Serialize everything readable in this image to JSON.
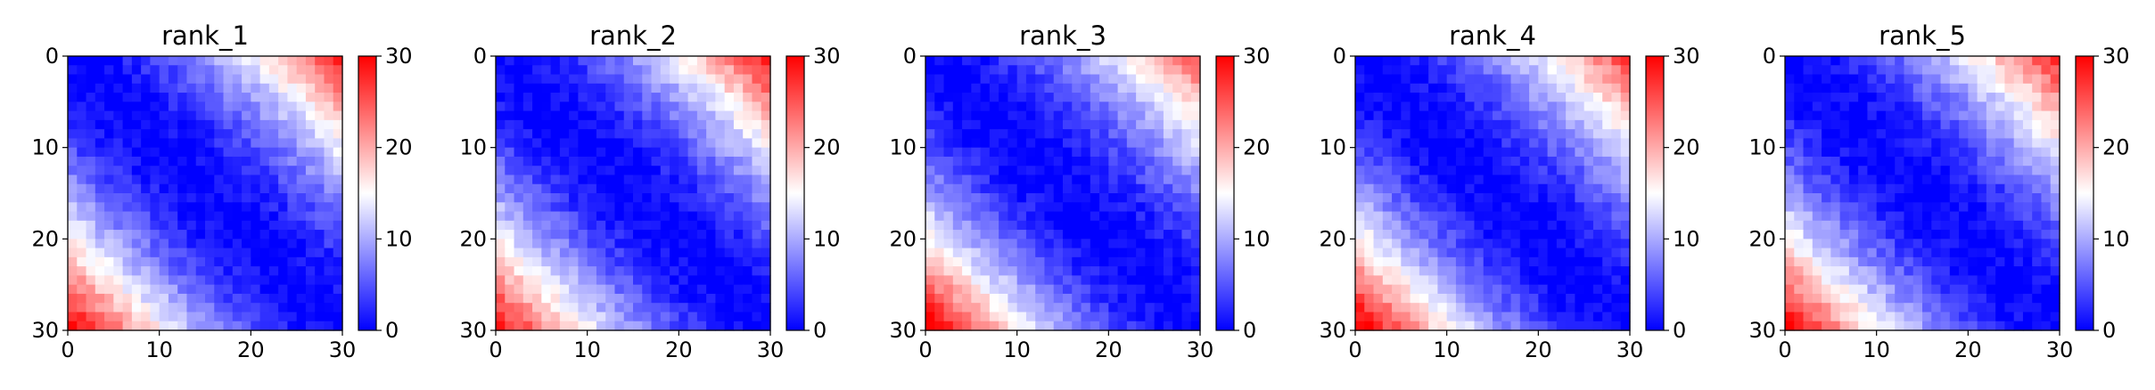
{
  "chart_data": [
    {
      "type": "heatmap",
      "title": "rank_1",
      "grid_size": 30,
      "x_ticks": [
        "0",
        "10",
        "20",
        "30"
      ],
      "y_ticks": [
        "0",
        "10",
        "20",
        "30"
      ],
      "colorbar": {
        "colormap": "bwr",
        "range": [
          0,
          30
        ],
        "ticks": [
          "0",
          "10",
          "20",
          "30"
        ]
      },
      "diagonal_value": 0,
      "top_right_value": 27,
      "bottom_left_value": 30
    },
    {
      "type": "heatmap",
      "title": "rank_2",
      "grid_size": 30,
      "x_ticks": [
        "0",
        "10",
        "20",
        "30"
      ],
      "y_ticks": [
        "0",
        "10",
        "20",
        "30"
      ],
      "colorbar": {
        "colormap": "bwr",
        "range": [
          0,
          30
        ],
        "ticks": [
          "0",
          "10",
          "20",
          "30"
        ]
      },
      "diagonal_value": 0,
      "top_right_value": 28,
      "bottom_left_value": 29
    },
    {
      "type": "heatmap",
      "title": "rank_3",
      "grid_size": 30,
      "x_ticks": [
        "0",
        "10",
        "20",
        "30"
      ],
      "y_ticks": [
        "0",
        "10",
        "20",
        "30"
      ],
      "colorbar": {
        "colormap": "bwr",
        "range": [
          0,
          30
        ],
        "ticks": [
          "0",
          "10",
          "20",
          "30"
        ]
      },
      "diagonal_value": 0,
      "top_right_value": 24,
      "bottom_left_value": 31
    },
    {
      "type": "heatmap",
      "title": "rank_4",
      "grid_size": 30,
      "x_ticks": [
        "0",
        "10",
        "20",
        "30"
      ],
      "y_ticks": [
        "0",
        "10",
        "20",
        "30"
      ],
      "colorbar": {
        "colormap": "bwr",
        "range": [
          0,
          30
        ],
        "ticks": [
          "0",
          "10",
          "20",
          "30"
        ]
      },
      "diagonal_value": 0,
      "top_right_value": 26,
      "bottom_left_value": 31
    },
    {
      "type": "heatmap",
      "title": "rank_5",
      "grid_size": 30,
      "x_ticks": [
        "0",
        "10",
        "20",
        "30"
      ],
      "y_ticks": [
        "0",
        "10",
        "20",
        "30"
      ],
      "colorbar": {
        "colormap": "bwr",
        "range": [
          0,
          30
        ],
        "ticks": [
          "0",
          "10",
          "20",
          "30"
        ]
      },
      "diagonal_value": 0,
      "top_right_value": 27,
      "bottom_left_value": 30
    }
  ]
}
